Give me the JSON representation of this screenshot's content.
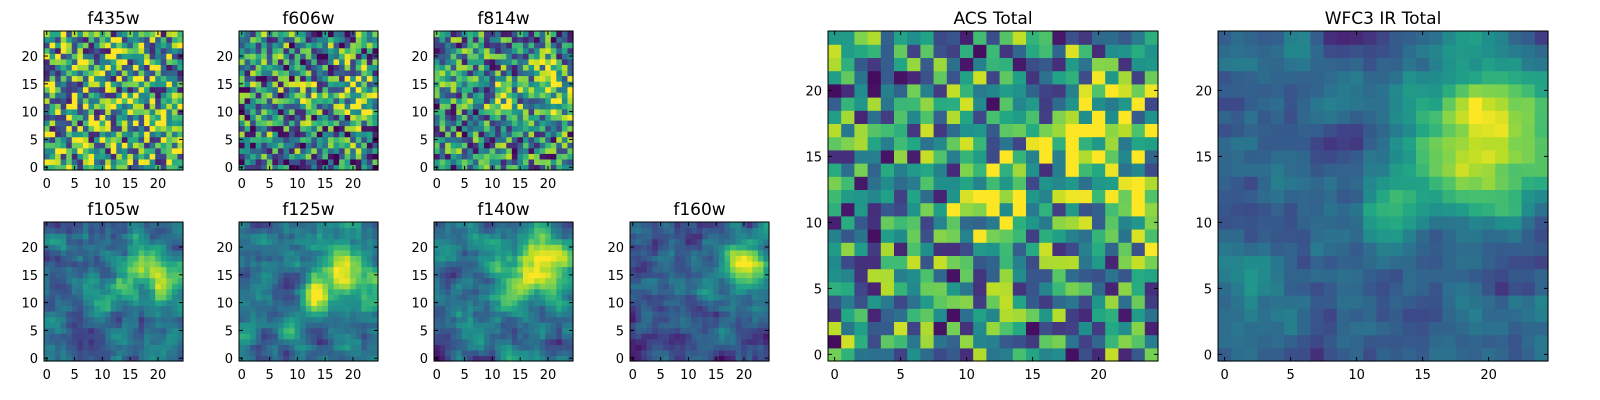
{
  "colormap": "viridis",
  "chart_data": [
    {
      "type": "heatmap",
      "title": "f435w",
      "size": 25,
      "xticks": [
        0,
        5,
        10,
        15,
        20
      ],
      "yticks": [
        0,
        5,
        10,
        15,
        20
      ],
      "xlim": [
        0,
        25
      ],
      "ylim": [
        0,
        25
      ],
      "grid": false,
      "smooth": 0,
      "noise": 0.55,
      "base": 0.62,
      "blobs": [
        [
          15,
          11,
          2,
          0.05
        ]
      ],
      "seed": 11
    },
    {
      "type": "heatmap",
      "title": "f606w",
      "size": 25,
      "xticks": [
        0,
        5,
        10,
        15,
        20
      ],
      "yticks": [
        0,
        5,
        10,
        15,
        20
      ],
      "xlim": [
        0,
        25
      ],
      "ylim": [
        0,
        25
      ],
      "grid": false,
      "smooth": 0,
      "noise": 0.5,
      "base": 0.45,
      "blobs": [
        [
          21,
          15,
          2.5,
          0.3
        ],
        [
          12,
          12,
          2,
          0.25
        ],
        [
          22,
          11,
          2,
          0.3
        ]
      ],
      "seed": 22
    },
    {
      "type": "heatmap",
      "title": "f814w",
      "size": 25,
      "xticks": [
        0,
        5,
        10,
        15,
        20
      ],
      "yticks": [
        0,
        5,
        10,
        15,
        20
      ],
      "xlim": [
        0,
        25
      ],
      "ylim": [
        0,
        25
      ],
      "grid": false,
      "smooth": 0,
      "noise": 0.45,
      "base": 0.45,
      "blobs": [
        [
          20,
          16,
          2.5,
          0.4
        ],
        [
          12,
          12,
          2,
          0.35
        ],
        [
          22,
          11,
          2,
          0.3
        ]
      ],
      "seed": 33
    },
    {
      "type": "heatmap",
      "title": "f105w",
      "size": 25,
      "xticks": [
        0,
        5,
        10,
        15,
        20
      ],
      "yticks": [
        0,
        5,
        10,
        15,
        20
      ],
      "xlim": [
        0,
        25
      ],
      "ylim": [
        0,
        25
      ],
      "grid": false,
      "smooth": 1,
      "noise": 0.3,
      "base": 0.35,
      "blobs": [
        [
          19,
          16,
          3.5,
          0.55
        ],
        [
          13,
          12,
          2,
          0.2
        ]
      ],
      "seed": 44
    },
    {
      "type": "heatmap",
      "title": "f125w",
      "size": 25,
      "xticks": [
        0,
        5,
        10,
        15,
        20
      ],
      "yticks": [
        0,
        5,
        10,
        15,
        20
      ],
      "xlim": [
        0,
        25
      ],
      "ylim": [
        0,
        25
      ],
      "grid": false,
      "smooth": 1,
      "noise": 0.3,
      "base": 0.4,
      "blobs": [
        [
          19,
          15,
          3.5,
          0.5
        ],
        [
          13,
          11,
          2,
          0.35
        ]
      ],
      "seed": 55
    },
    {
      "type": "heatmap",
      "title": "f140w",
      "size": 25,
      "xticks": [
        0,
        5,
        10,
        15,
        20
      ],
      "yticks": [
        0,
        5,
        10,
        15,
        20
      ],
      "xlim": [
        0,
        25
      ],
      "ylim": [
        0,
        25
      ],
      "grid": false,
      "smooth": 1,
      "noise": 0.3,
      "base": 0.4,
      "blobs": [
        [
          19,
          16,
          4,
          0.6
        ],
        [
          13,
          12,
          2,
          0.2
        ]
      ],
      "seed": 66
    },
    {
      "type": "heatmap",
      "title": "f160w",
      "size": 25,
      "xticks": [
        0,
        5,
        10,
        15,
        20
      ],
      "yticks": [
        0,
        5,
        10,
        15,
        20
      ],
      "xlim": [
        0,
        25
      ],
      "ylim": [
        0,
        25
      ],
      "grid": false,
      "smooth": 1,
      "noise": 0.25,
      "base": 0.28,
      "blobs": [
        [
          20,
          17,
          3,
          0.7
        ],
        [
          13,
          13,
          2,
          0.15
        ]
      ],
      "seed": 77
    },
    {
      "type": "heatmap",
      "title": "ACS Total",
      "size": 25,
      "xticks": [
        0,
        5,
        10,
        15,
        20
      ],
      "yticks": [
        0,
        5,
        10,
        15,
        20
      ],
      "xlim": [
        0,
        25
      ],
      "ylim": [
        0,
        25
      ],
      "grid": false,
      "smooth": 0,
      "noise": 0.45,
      "base": 0.48,
      "blobs": [
        [
          20,
          17,
          2.5,
          0.45
        ],
        [
          12,
          12,
          2,
          0.45
        ],
        [
          22,
          11,
          2,
          0.4
        ]
      ],
      "seed": 88
    },
    {
      "type": "heatmap",
      "title": "WFC3 IR Total",
      "size": 25,
      "xticks": [
        0,
        5,
        10,
        15,
        20
      ],
      "yticks": [
        0,
        5,
        10,
        15,
        20
      ],
      "xlim": [
        0,
        25
      ],
      "ylim": [
        0,
        25
      ],
      "grid": false,
      "smooth": 1,
      "noise": 0.22,
      "base": 0.32,
      "blobs": [
        [
          20,
          17,
          4,
          0.65
        ],
        [
          13,
          12,
          2.2,
          0.2
        ]
      ],
      "seed": 99
    }
  ]
}
